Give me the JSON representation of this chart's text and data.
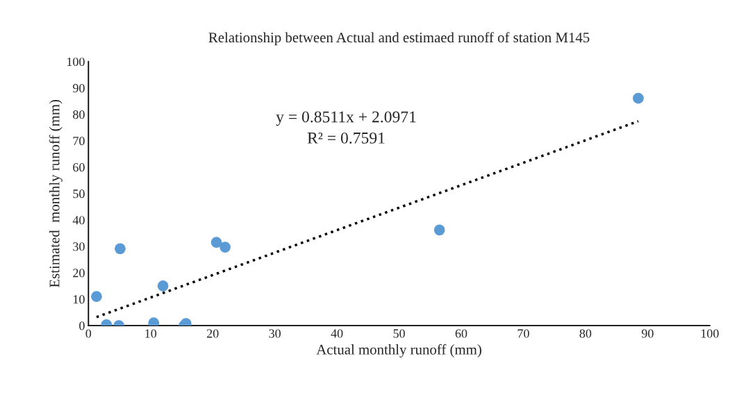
{
  "chart_data": {
    "type": "scatter",
    "title": "Relationship between Actual and estimaed runoff of station M145",
    "xlabel": "Actual monthly runoff (mm)",
    "ylabel": "Estimated  monthly runoff (mm)",
    "series": [
      {
        "marker": "circle",
        "color": "#5b9bd5",
        "x": [
          1.3,
          2.9,
          4.9,
          5.1,
          10.5,
          12.0,
          15.4,
          15.7,
          20.6,
          22.0,
          56.5,
          88.5
        ],
        "values": [
          11.0,
          0.3,
          0.0,
          29.1,
          1.0,
          15.0,
          0.0,
          0.8,
          31.5,
          29.7,
          36.2,
          86.1
        ]
      },
      {
        "type": "line",
        "line_style": "dotted",
        "color": "#000000",
        "x": [
          1.3,
          88.5
        ],
        "values": [
          3.2,
          77.4
        ]
      }
    ],
    "annotations": [
      "y = 0.8511x + 2.0971",
      "R² = 0.7591"
    ],
    "xlim": [
      0,
      100
    ],
    "xticks": [
      0,
      10,
      20,
      30,
      40,
      50,
      60,
      70,
      80,
      90,
      100
    ],
    "ylim": [
      0,
      100
    ],
    "yticks": [
      0,
      10,
      20,
      30,
      40,
      50,
      60,
      70,
      80,
      90,
      100
    ],
    "grid": false,
    "legend": false
  }
}
